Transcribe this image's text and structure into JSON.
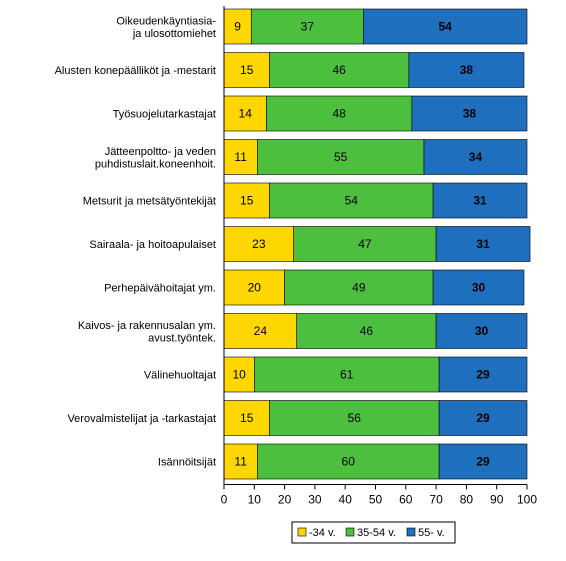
{
  "chart_data": {
    "type": "bar",
    "orientation": "horizontal",
    "stacked": true,
    "categories": [
      [
        "Oikeudenkäyntiasia-",
        "ja ulosottomiehet"
      ],
      [
        "Alusten konepäälliköt ja -mestarit"
      ],
      [
        "Työsuojelutarkastajat"
      ],
      [
        "Jätteenpoltto- ja veden",
        "puhdistuslait.koneenhoit."
      ],
      [
        "Metsurit ja metsätyöntekijät"
      ],
      [
        "Sairaala- ja hoitoapulaiset"
      ],
      [
        "Perhepäivähoitajat ym."
      ],
      [
        "Kaivos- ja rakennusalan ym.",
        "avust.työntek."
      ],
      [
        "Välinehuoltajat"
      ],
      [
        "Verovalmistelijat ja -tarkastajat"
      ],
      [
        "Isännöitsijät"
      ]
    ],
    "series": [
      {
        "name": "-34 v.",
        "color": "#FFD700",
        "values": [
          9,
          15,
          14,
          11,
          15,
          23,
          20,
          24,
          10,
          15,
          11
        ]
      },
      {
        "name": "35-54 v.",
        "color": "#4DBF3F",
        "values": [
          37,
          46,
          48,
          55,
          54,
          47,
          49,
          46,
          61,
          56,
          60
        ]
      },
      {
        "name": "55- v.",
        "color": "#1F6FBF",
        "values": [
          54,
          38,
          38,
          34,
          31,
          31,
          30,
          30,
          29,
          29,
          29
        ]
      }
    ],
    "xlim": [
      0,
      100
    ],
    "xticks": [
      0,
      10,
      20,
      30,
      40,
      50,
      60,
      70,
      80,
      90,
      100
    ],
    "legend_position": "bottom",
    "grid": false
  }
}
